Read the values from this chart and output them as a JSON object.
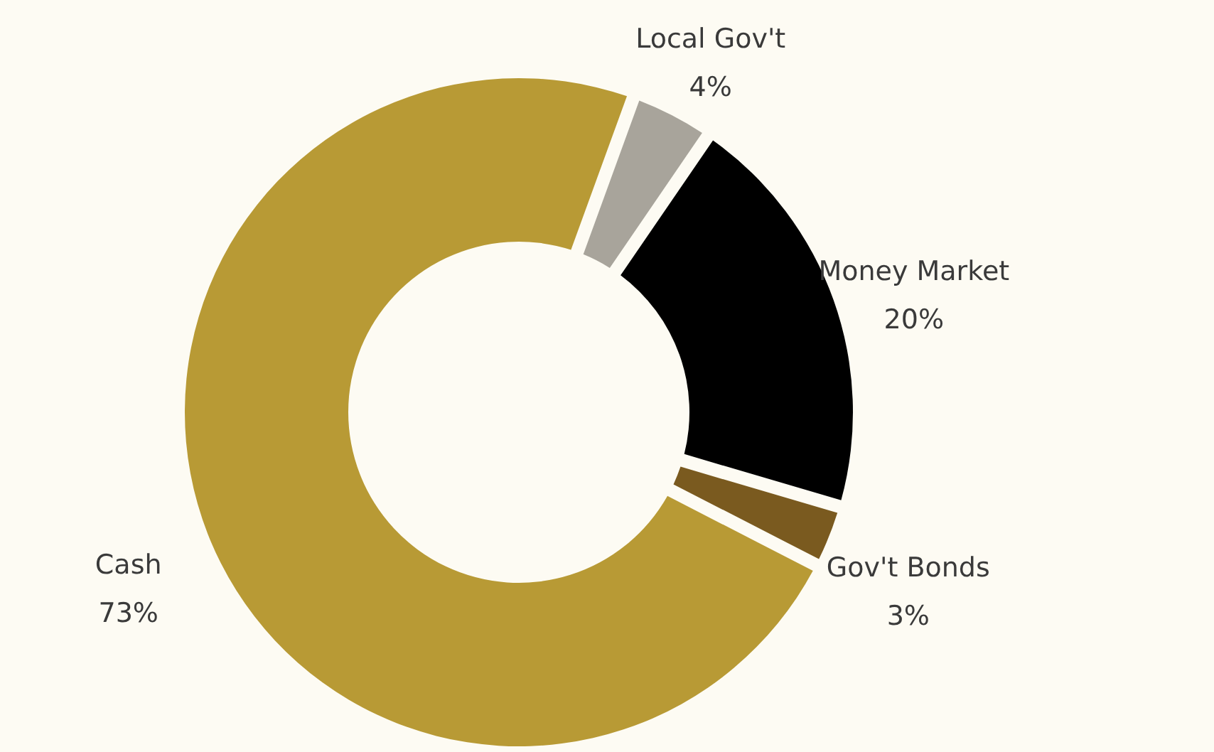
{
  "chart_data": {
    "type": "donut",
    "categories": [
      "Local Gov't",
      "Money Market",
      "Gov't Bonds",
      "Cash"
    ],
    "values": [
      4,
      20,
      3,
      73
    ],
    "value_labels": [
      "4%",
      "20%",
      "3%",
      "73%"
    ],
    "colors": [
      "#a8a49b",
      "#000000",
      "#7a5a1f",
      "#b89a35"
    ]
  }
}
